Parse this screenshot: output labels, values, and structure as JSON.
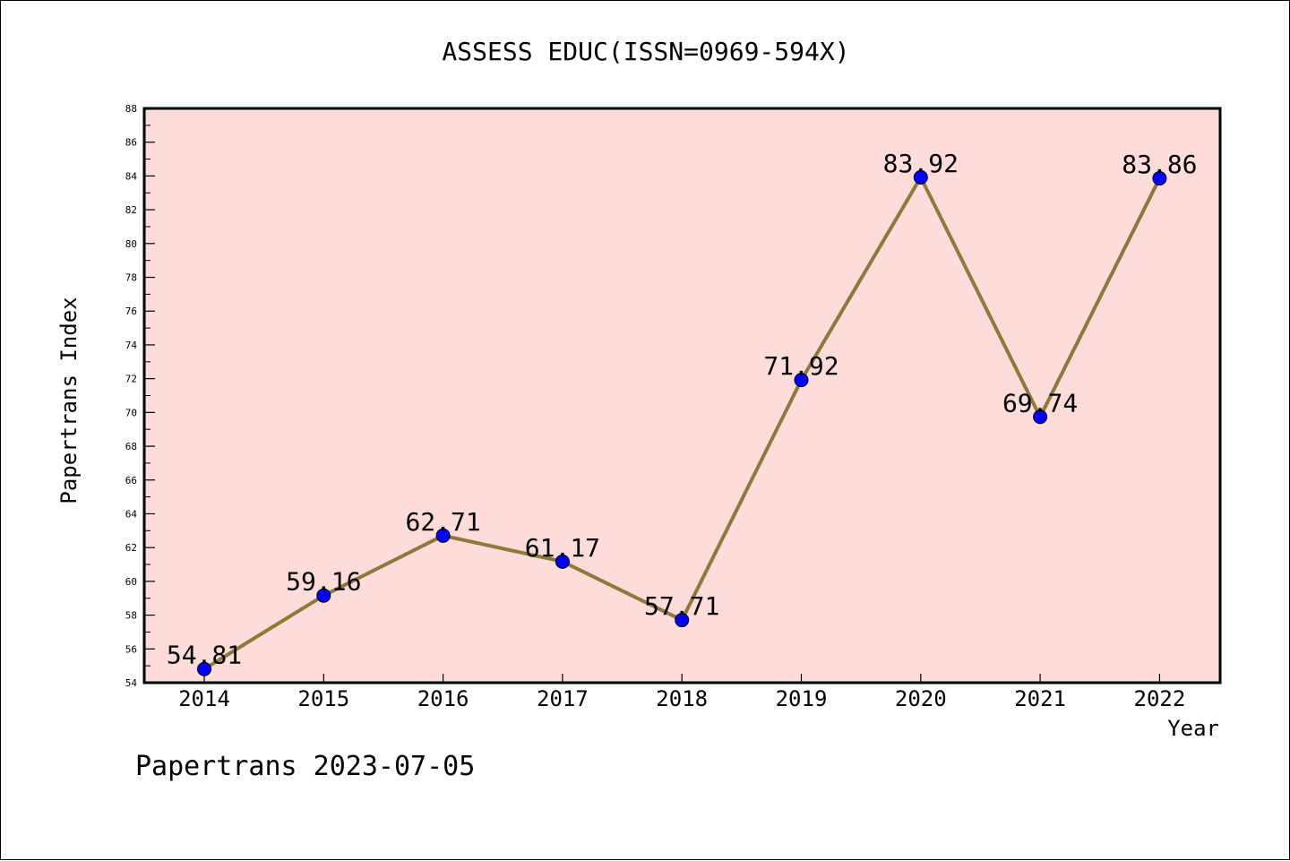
{
  "chart_data": {
    "type": "line",
    "title": "ASSESS EDUC(ISSN=0969-594X)",
    "xlabel": "Year",
    "ylabel": "Papertrans Index",
    "x": [
      "2014",
      "2015",
      "2016",
      "2017",
      "2018",
      "2019",
      "2020",
      "2021",
      "2022"
    ],
    "series": [
      {
        "values": [
          54.81,
          59.16,
          62.71,
          61.17,
          57.71,
          71.92,
          83.92,
          69.74,
          83.86
        ],
        "labels": [
          "54.81",
          "59.16",
          "62.71",
          "61.17",
          "57.71",
          "71.92",
          "83.92",
          "69.74",
          "83.86"
        ]
      }
    ],
    "ylim": [
      54,
      88
    ],
    "yticks": [
      "54",
      "56",
      "58",
      "60",
      "62",
      "64",
      "66",
      "68",
      "70",
      "72",
      "74",
      "76",
      "78",
      "80",
      "82",
      "84",
      "86",
      "88"
    ],
    "grid": false,
    "colors": {
      "plot_background": "#fddcda",
      "line": "#8b7a3a",
      "marker": "#0000ff"
    }
  },
  "footer": "Papertrans 2023-07-05"
}
